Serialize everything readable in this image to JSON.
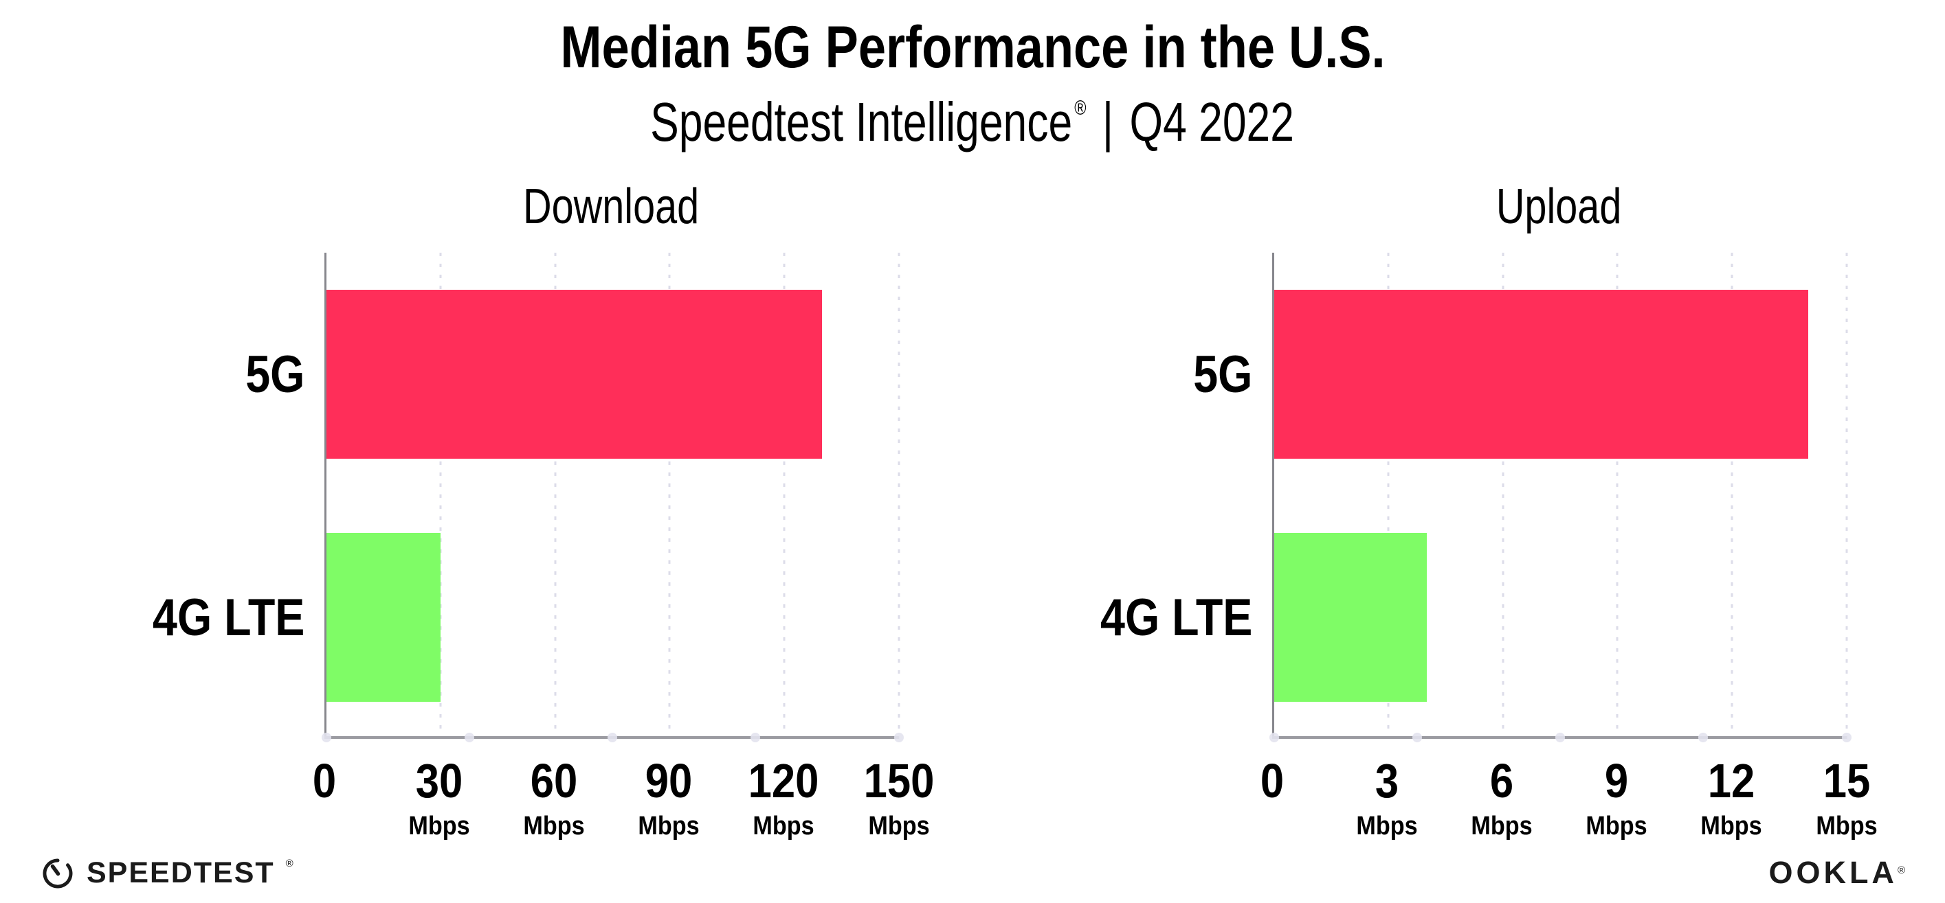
{
  "header": {
    "title": "Median 5G Performance in the U.S.",
    "subtitle_brand": "Speedtest Intelligence",
    "subtitle_reg": "®",
    "subtitle_separator": "|",
    "subtitle_period": "Q4 2022"
  },
  "chart_data": [
    {
      "type": "bar",
      "orientation": "horizontal",
      "title": "Download",
      "categories": [
        "5G",
        "4G LTE"
      ],
      "values": [
        130,
        30
      ],
      "unit": "Mbps",
      "xlim": [
        0,
        150
      ],
      "xticks": [
        0,
        30,
        60,
        90,
        120,
        150
      ],
      "bar_colors": [
        "#FF2E59",
        "#7FFC66"
      ],
      "grid": "dotted-vertical-gridlines",
      "legend": "none"
    },
    {
      "type": "bar",
      "orientation": "horizontal",
      "title": "Upload",
      "categories": [
        "5G",
        "4G LTE"
      ],
      "values": [
        14,
        4
      ],
      "unit": "Mbps",
      "xlim": [
        0,
        15
      ],
      "xticks": [
        0,
        3,
        6,
        9,
        12,
        15
      ],
      "bar_colors": [
        "#FF2E59",
        "#7FFC66"
      ],
      "grid": "dotted-vertical-gridlines",
      "legend": "none"
    }
  ],
  "footer": {
    "speedtest_label": "SPEEDTEST",
    "speedtest_reg": "®",
    "ookla_label": "OOKLA",
    "ookla_reg": "®"
  },
  "colors": {
    "bar_5g": "#FF2E59",
    "bar_4g_lte": "#7FFC66",
    "gridline": "#DCDCE9",
    "axis_line": "#9B9BA1",
    "y_axis_line": "#87878D",
    "text": "#000000",
    "background": "#FFFFFF"
  }
}
